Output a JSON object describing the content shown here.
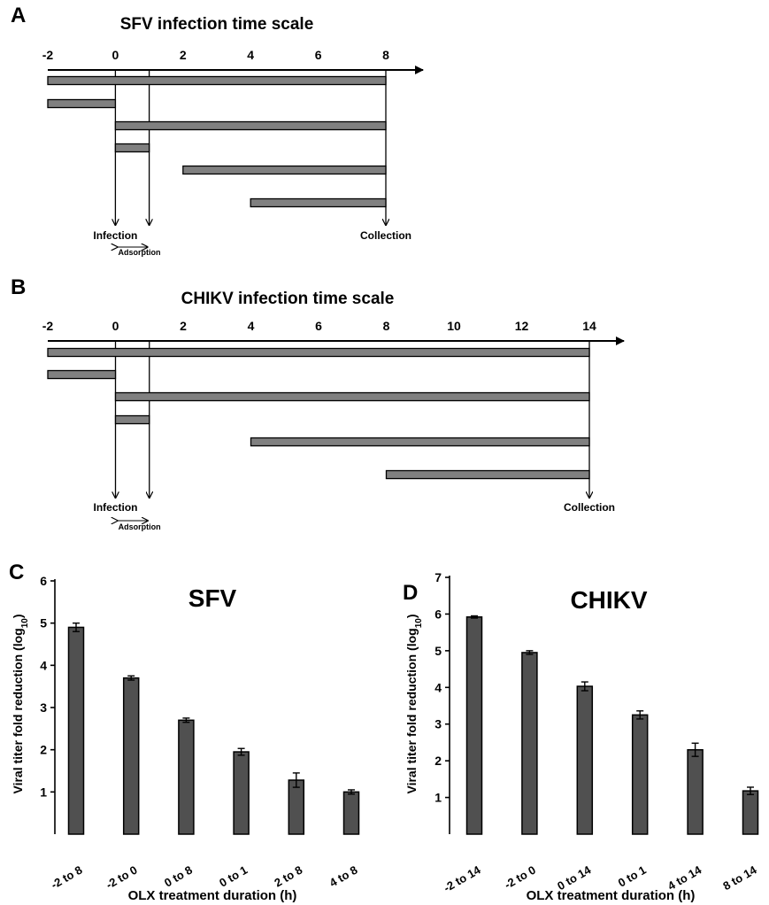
{
  "colors": {
    "bar_fill": "#505050",
    "timeline_bar_fill": "#808080",
    "axis": "#000000"
  },
  "panels": {
    "A": {
      "letter": "A",
      "title": "SFV infection time scale",
      "ticks": [
        "-2",
        "0",
        "2",
        "4",
        "6",
        "8"
      ],
      "intervals": [
        [
          -2,
          8
        ],
        [
          -2,
          0
        ],
        [
          0,
          8
        ],
        [
          0,
          1
        ],
        [
          2,
          8
        ],
        [
          4,
          8
        ]
      ],
      "infection_label": "Infection",
      "adsorption_label": "Adsorption",
      "collection_label": "Collection",
      "collection_time": 8
    },
    "B": {
      "letter": "B",
      "title": "CHIKV infection time scale",
      "ticks": [
        "-2",
        "0",
        "2",
        "4",
        "6",
        "8",
        "10",
        "12",
        "14"
      ],
      "intervals": [
        [
          -2,
          14
        ],
        [
          -2,
          0
        ],
        [
          0,
          14
        ],
        [
          0,
          1
        ],
        [
          4,
          14
        ],
        [
          8,
          14
        ]
      ],
      "infection_label": "Infection",
      "adsorption_label": "Adsorption",
      "collection_label": "Collection",
      "collection_time": 14
    },
    "C": {
      "letter": "C"
    },
    "D": {
      "letter": "D"
    }
  },
  "chart_data": [
    {
      "type": "bar",
      "title": "SFV",
      "categories": [
        "-2 to 8",
        "-2 to 0",
        "0 to 8",
        "0 to 1",
        "2 to 8",
        "4 to 8"
      ],
      "values": [
        4.9,
        3.7,
        2.7,
        1.95,
        1.28,
        1.0
      ],
      "errors": [
        0.1,
        0.05,
        0.05,
        0.08,
        0.17,
        0.05
      ],
      "ylabel": "Viral titer fold reduction (log",
      "ylabel_subscript": "10",
      "ylabel_suffix": ")",
      "xlabel": "OLX treatment duration (h)",
      "yticks": [
        "1",
        "2",
        "3",
        "4",
        "5",
        "6"
      ],
      "ylim": [
        0,
        6
      ],
      "grid": false
    },
    {
      "type": "bar",
      "title": "CHIKV",
      "categories": [
        "-2 to 14",
        "-2 to 0",
        "0 to 14",
        "0 to 1",
        "4 to 14",
        "8 to 14"
      ],
      "values": [
        5.92,
        4.95,
        4.03,
        3.25,
        2.3,
        1.18
      ],
      "errors": [
        0.03,
        0.05,
        0.12,
        0.11,
        0.18,
        0.1
      ],
      "ylabel": "Viral titer fold reduction (log",
      "ylabel_subscript": "10",
      "ylabel_suffix": ")",
      "xlabel": "OLX treatment duration (h)",
      "yticks": [
        "1",
        "2",
        "3",
        "4",
        "5",
        "6",
        "7"
      ],
      "ylim": [
        0,
        7
      ],
      "grid": false
    }
  ]
}
